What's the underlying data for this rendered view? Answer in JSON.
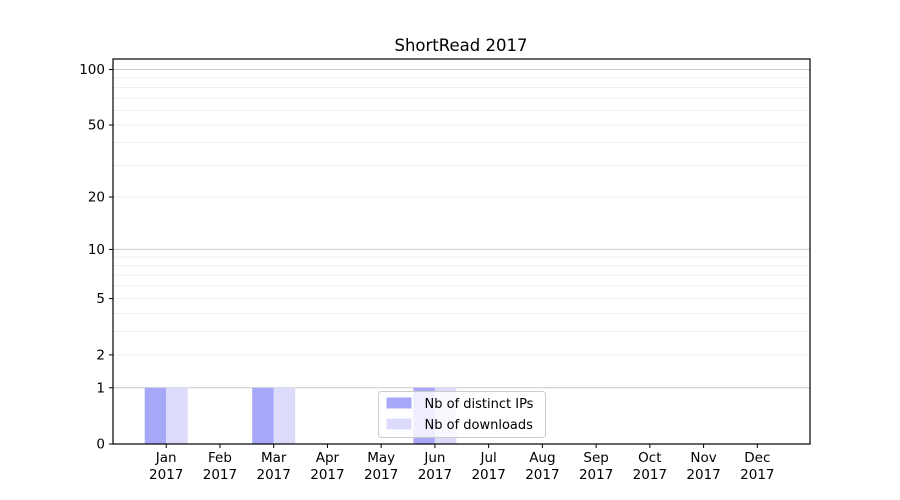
{
  "chart_data": {
    "type": "bar",
    "title": "ShortRead 2017",
    "categories": [
      "Jan",
      "Feb",
      "Mar",
      "Apr",
      "May",
      "Jun",
      "Jul",
      "Aug",
      "Sep",
      "Oct",
      "Nov",
      "Dec"
    ],
    "year": "2017",
    "series": [
      {
        "name": "Nb of distinct IPs",
        "color": "#a8a8f8",
        "values": [
          1,
          0,
          1,
          0,
          0,
          1,
          0,
          0,
          0,
          0,
          0,
          0
        ]
      },
      {
        "name": "Nb of downloads",
        "color": "#dcdcfa",
        "values": [
          1,
          0,
          1,
          0,
          0,
          1,
          0,
          0,
          0,
          0,
          0,
          0
        ]
      }
    ],
    "yscale": "log1p",
    "yticks": [
      0,
      1,
      2,
      5,
      10,
      20,
      50,
      100
    ],
    "ylim": [
      0,
      114
    ],
    "xlabel": "",
    "ylabel": "",
    "grid": {
      "major_values": [
        1,
        10,
        100
      ],
      "minor_values": [
        2,
        3,
        4,
        5,
        6,
        7,
        8,
        9,
        20,
        30,
        40,
        50,
        60,
        70,
        80,
        90
      ],
      "major_color": "#c9c9c9",
      "minor_color": "#efefef"
    },
    "legend": {
      "position": "lower-center",
      "background": "#ffffff",
      "border_color": "#cccccc",
      "entries": [
        "Nb of distinct IPs",
        "Nb of downloads"
      ]
    },
    "axis_color": "#000000"
  }
}
